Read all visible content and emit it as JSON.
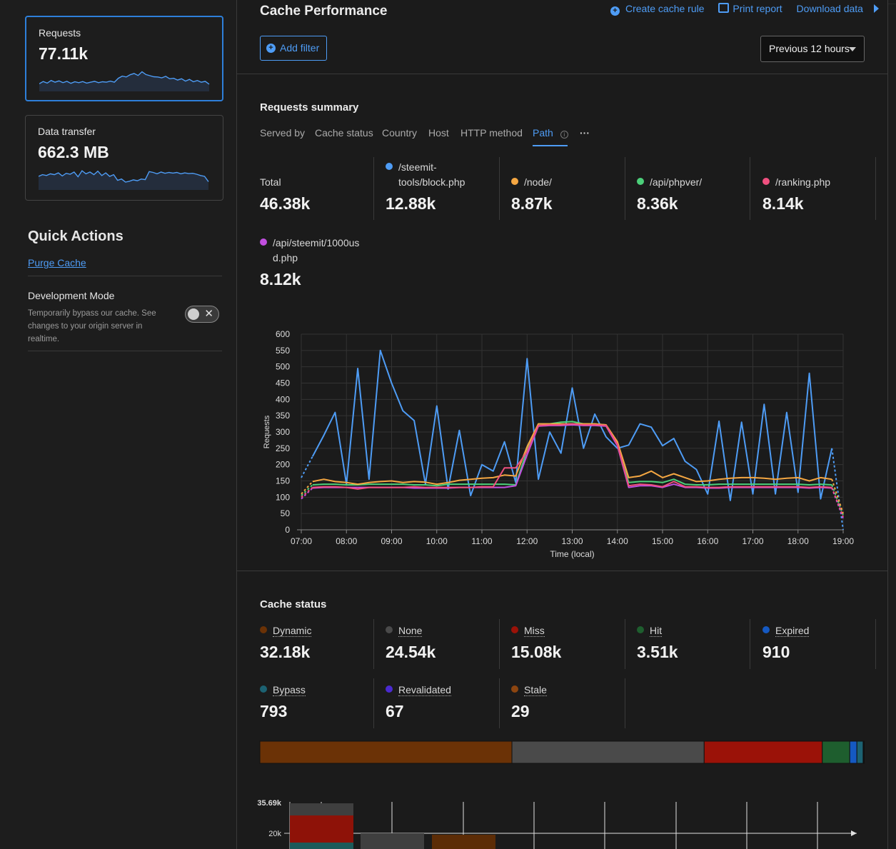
{
  "sidebar": {
    "cards": [
      {
        "label": "Requests",
        "value": "77.11k",
        "spark": [
          0.35,
          0.45,
          0.38,
          0.5,
          0.42,
          0.48,
          0.4,
          0.46,
          0.37,
          0.44,
          0.4,
          0.45,
          0.38,
          0.42,
          0.46,
          0.4,
          0.44,
          0.42,
          0.47,
          0.42,
          0.6,
          0.7,
          0.66,
          0.76,
          0.82,
          0.73,
          0.9,
          0.77,
          0.72,
          0.67,
          0.66,
          0.62,
          0.69,
          0.58,
          0.6,
          0.52,
          0.58,
          0.47,
          0.55,
          0.44,
          0.5,
          0.42,
          0.46,
          0.33
        ]
      },
      {
        "label": "Data transfer",
        "value": "662.3 MB",
        "spark": [
          0.62,
          0.7,
          0.66,
          0.74,
          0.7,
          0.78,
          0.64,
          0.76,
          0.72,
          0.82,
          0.6,
          0.88,
          0.74,
          0.82,
          0.7,
          0.86,
          0.66,
          0.78,
          0.62,
          0.7,
          0.44,
          0.5,
          0.36,
          0.4,
          0.46,
          0.42,
          0.5,
          0.47,
          0.84,
          0.8,
          0.74,
          0.82,
          0.76,
          0.8,
          0.77,
          0.8,
          0.74,
          0.78,
          0.75,
          0.76,
          0.72,
          0.66,
          0.62,
          0.38
        ]
      }
    ],
    "quick_actions_title": "Quick Actions",
    "purge_label": "Purge Cache",
    "dev_mode_title": "Development Mode",
    "dev_mode_desc": "Temporarily bypass our cache. See changes to your origin server in realtime."
  },
  "header": {
    "title": "Cache Performance",
    "links": [
      "Create cache rule",
      "Print report",
      "Download data"
    ],
    "add_filter": "Add filter",
    "time_range": "Previous 12 hours"
  },
  "summary": {
    "title": "Requests summary",
    "tabs": [
      "Served by",
      "Cache status",
      "Country",
      "Host",
      "HTTP method",
      "Path"
    ],
    "active_tab": "Path",
    "more": "···",
    "stats": [
      {
        "label": "Total",
        "value": "46.38k",
        "color": ""
      },
      {
        "label": "/steemit-tools/block.php",
        "label_a": "/steemit-",
        "label_b": "tools/block.php",
        "value": "12.88k",
        "color": "#4e9cf5"
      },
      {
        "label": "/node/",
        "value": "8.87k",
        "color": "#f5a742"
      },
      {
        "label": "/api/phpver/",
        "value": "8.36k",
        "color": "#4ccf7a"
      },
      {
        "label": "/ranking.php",
        "value": "8.14k",
        "color": "#f0507f"
      },
      {
        "label": "/api/steemit/1000usd.php",
        "label_a": "/api/steemit/1000us",
        "label_b": "d.php",
        "value": "8.12k",
        "color": "#c24fe0"
      }
    ]
  },
  "chart_data": {
    "type": "line",
    "ylabel": "Requests",
    "xlabel": "Time (local)",
    "ylim": [
      0,
      600
    ],
    "yticks": [
      "0",
      "50",
      "100",
      "150",
      "200",
      "250",
      "300",
      "350",
      "400",
      "450",
      "500",
      "550",
      "600"
    ],
    "xticks": [
      "07:00",
      "08:00",
      "09:00",
      "10:00",
      "11:00",
      "12:00",
      "13:00",
      "14:00",
      "15:00",
      "16:00",
      "17:00",
      "18:00",
      "19:00"
    ],
    "x_hours": [
      7.0,
      7.25,
      7.5,
      7.75,
      8.0,
      8.25,
      8.5,
      8.75,
      9.0,
      9.25,
      9.5,
      9.75,
      10.0,
      10.25,
      10.5,
      10.75,
      11.0,
      11.25,
      11.5,
      11.75,
      12.0,
      12.25,
      12.5,
      12.75,
      13.0,
      13.25,
      13.5,
      13.75,
      14.0,
      14.25,
      14.5,
      14.75,
      15.0,
      15.25,
      15.5,
      15.75,
      16.0,
      16.25,
      16.5,
      16.75,
      17.0,
      17.25,
      17.5,
      17.75,
      18.0,
      18.25,
      18.5,
      18.75,
      19.0
    ],
    "series": [
      {
        "name": "/steemit-tools/block.php",
        "color": "#4e9cf5",
        "values": [
          160,
          225,
          290,
          360,
          140,
          495,
          155,
          550,
          450,
          365,
          335,
          140,
          380,
          125,
          305,
          105,
          200,
          180,
          270,
          145,
          525,
          155,
          300,
          235,
          435,
          250,
          355,
          285,
          250,
          260,
          325,
          315,
          258,
          280,
          210,
          185,
          110,
          333,
          90,
          330,
          110,
          385,
          110,
          360,
          115,
          480,
          95,
          250,
          0
        ]
      },
      {
        "name": "/node/",
        "color": "#f5a742",
        "values": [
          110,
          148,
          155,
          148,
          145,
          140,
          145,
          148,
          150,
          145,
          148,
          146,
          140,
          145,
          152,
          155,
          158,
          160,
          168,
          165,
          255,
          325,
          325,
          325,
          325,
          325,
          325,
          322,
          270,
          160,
          165,
          180,
          160,
          172,
          160,
          148,
          150,
          155,
          158,
          160,
          160,
          158,
          155,
          158,
          160,
          150,
          160,
          155,
          50
        ]
      },
      {
        "name": "/api/phpver/",
        "color": "#4ccf7a",
        "values": [
          105,
          138,
          140,
          140,
          138,
          138,
          140,
          140,
          140,
          140,
          138,
          138,
          135,
          140,
          140,
          140,
          140,
          140,
          140,
          138,
          245,
          325,
          325,
          330,
          332,
          325,
          325,
          322,
          265,
          145,
          148,
          148,
          145,
          155,
          140,
          138,
          138,
          140,
          140,
          140,
          140,
          140,
          140,
          140,
          140,
          138,
          140,
          138,
          45
        ]
      },
      {
        "name": "/ranking.php",
        "color": "#f0507f",
        "values": [
          100,
          130,
          132,
          132,
          130,
          125,
          130,
          130,
          130,
          130,
          132,
          130,
          130,
          130,
          130,
          130,
          132,
          132,
          190,
          190,
          240,
          320,
          322,
          322,
          325,
          322,
          322,
          320,
          262,
          135,
          140,
          138,
          132,
          148,
          132,
          132,
          130,
          130,
          132,
          132,
          132,
          132,
          132,
          132,
          132,
          130,
          132,
          130,
          40
        ]
      },
      {
        "name": "/api/steemit/1000usd.php",
        "color": "#c24fe0",
        "values": [
          95,
          128,
          130,
          130,
          130,
          130,
          130,
          130,
          130,
          130,
          128,
          128,
          128,
          128,
          130,
          130,
          130,
          130,
          130,
          135,
          230,
          318,
          320,
          320,
          322,
          320,
          320,
          318,
          258,
          130,
          135,
          135,
          130,
          140,
          130,
          130,
          128,
          128,
          130,
          130,
          130,
          130,
          130,
          130,
          130,
          128,
          130,
          128,
          35
        ]
      }
    ]
  },
  "cache_status": {
    "title": "Cache status",
    "stats": [
      {
        "label": "Dynamic",
        "value": "32.18k",
        "color": "#6b3206"
      },
      {
        "label": "None",
        "value": "24.54k",
        "color": "#4a4a4a"
      },
      {
        "label": "Miss",
        "value": "15.08k",
        "color": "#9b1208"
      },
      {
        "label": "Hit",
        "value": "3.51k",
        "color": "#1e5e2e"
      },
      {
        "label": "Expired",
        "value": "910",
        "color": "#1559c2"
      },
      {
        "label": "Bypass",
        "value": "793",
        "color": "#1c6272"
      },
      {
        "label": "Revalidated",
        "value": "67",
        "color": "#4a2ad0"
      },
      {
        "label": "Stale",
        "value": "29",
        "color": "#8c4510"
      }
    ],
    "bar_fractions": [
      32.18,
      24.54,
      15.08,
      3.51,
      0.91,
      0.793,
      0.067,
      0.029
    ]
  },
  "bottom_chart": {
    "yticks": [
      "35.69k",
      "20k"
    ]
  }
}
